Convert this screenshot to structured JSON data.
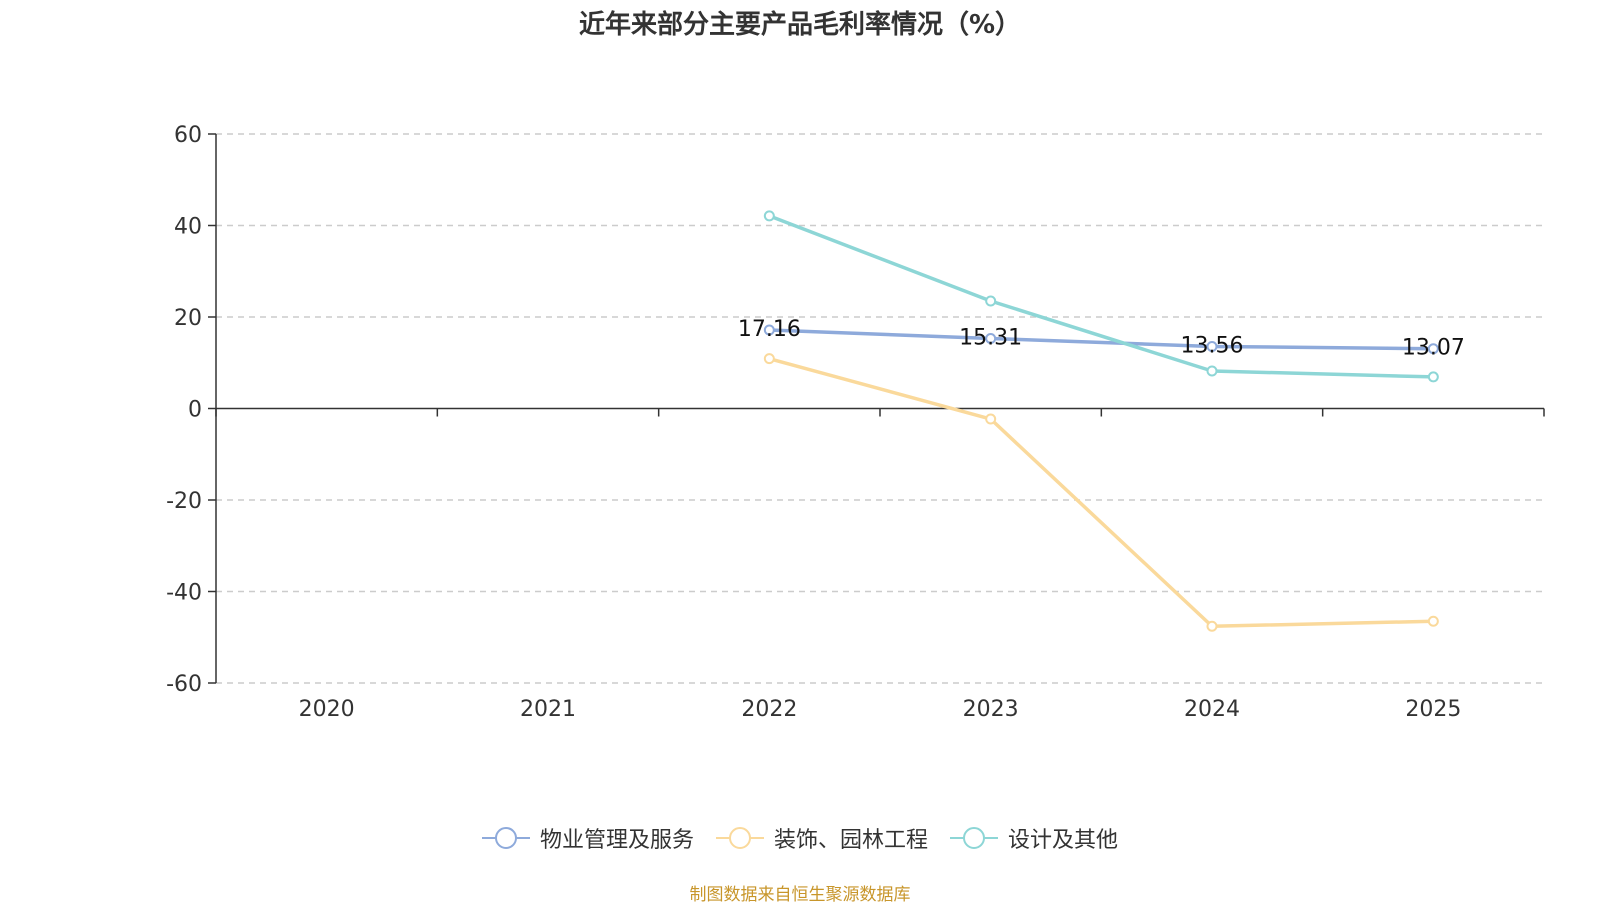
{
  "chart_data": {
    "type": "line",
    "title": "近年来部分主要产品毛利率情况（%）",
    "categories": [
      "2020",
      "2021",
      "2022",
      "2023",
      "2024",
      "2025"
    ],
    "ylim": [
      -60,
      60
    ],
    "yticks": [
      "60",
      "40",
      "20",
      "0",
      "-20",
      "-40",
      "-60"
    ],
    "grid": true,
    "legend_position": "bottom",
    "series": [
      {
        "name": "物业管理及服务",
        "color": "#8eaadb",
        "values": [
          null,
          null,
          17.16,
          15.31,
          13.56,
          13.07
        ],
        "labels": [
          "",
          "",
          "17.16",
          "15.31",
          "13.56",
          "13.07"
        ]
      },
      {
        "name": "装饰、园林工程",
        "color": "#fad99b",
        "values": [
          null,
          null,
          10.9,
          -2.3,
          -47.6,
          -46.5
        ]
      },
      {
        "name": "设计及其他",
        "color": "#8dd6d6",
        "values": [
          null,
          null,
          42.1,
          23.5,
          8.2,
          6.9
        ]
      }
    ],
    "source": "制图数据来自恒生聚源数据库"
  }
}
